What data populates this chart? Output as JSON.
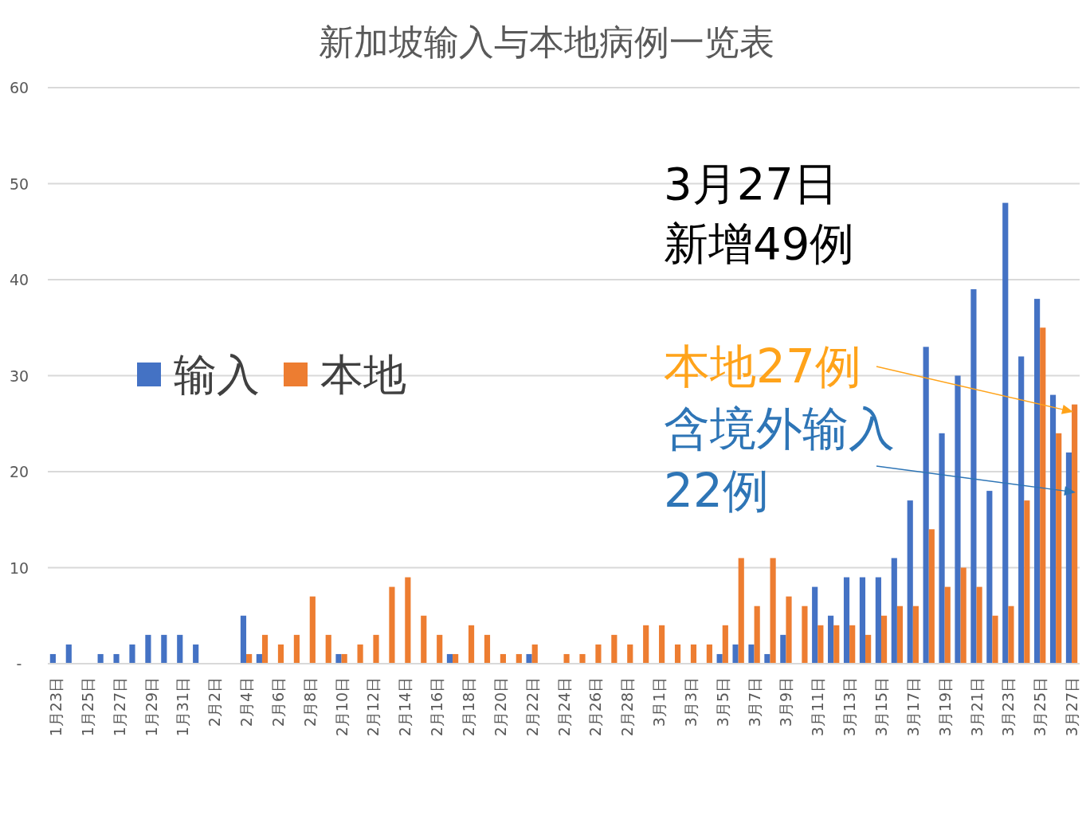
{
  "chart_data": {
    "type": "bar",
    "title": "新加坡输入与本地病例一览表",
    "categories": [
      "1月23日",
      null,
      "1月25日",
      null,
      "1月27日",
      null,
      "1月29日",
      null,
      "1月31日",
      null,
      "2月2日",
      null,
      "2月4日",
      null,
      "2月6日",
      null,
      "2月8日",
      null,
      "2月10日",
      null,
      "2月12日",
      null,
      "2月14日",
      null,
      "2月16日",
      null,
      "2月18日",
      null,
      "2月20日",
      null,
      "2月22日",
      null,
      "2月24日",
      null,
      "2月26日",
      null,
      "2月28日",
      null,
      "3月1日",
      null,
      "3月3日",
      null,
      "3月5日",
      null,
      "3月7日",
      null,
      "3月9日",
      null,
      "3月11日",
      null,
      "3月13日",
      null,
      "3月15日",
      null,
      "3月17日",
      null,
      "3月19日",
      null,
      "3月21日",
      null,
      "3月23日",
      null,
      "3月25日",
      null,
      "3月27日"
    ],
    "series": [
      {
        "name": "输入",
        "color": "#4472c4",
        "values": [
          1,
          2,
          0,
          1,
          1,
          2,
          3,
          3,
          3,
          2,
          0,
          0,
          5,
          1,
          0,
          0,
          0,
          0,
          1,
          0,
          0,
          0,
          0,
          0,
          0,
          1,
          0,
          0,
          0,
          0,
          1,
          0,
          0,
          0,
          0,
          0,
          0,
          0,
          0,
          0,
          0,
          0,
          1,
          2,
          2,
          1,
          3,
          0,
          8,
          5,
          9,
          9,
          9,
          11,
          17,
          33,
          24,
          30,
          39,
          18,
          48,
          32,
          38,
          28,
          22
        ]
      },
      {
        "name": "本地",
        "color": "#ed7d31",
        "values": [
          0,
          0,
          0,
          0,
          0,
          0,
          0,
          0,
          0,
          0,
          0,
          0,
          1,
          3,
          2,
          3,
          7,
          3,
          1,
          2,
          3,
          8,
          9,
          5,
          3,
          1,
          4,
          3,
          1,
          1,
          2,
          0,
          1,
          1,
          2,
          3,
          2,
          4,
          4,
          2,
          2,
          2,
          4,
          11,
          6,
          11,
          7,
          6,
          4,
          4,
          4,
          3,
          5,
          6,
          6,
          14,
          8,
          10,
          8,
          5,
          6,
          17,
          35,
          24,
          27
        ]
      }
    ],
    "ylim": [
      0,
      60
    ],
    "yticks": [
      {
        "value": 0,
        "label": "-"
      },
      10,
      20,
      30,
      40,
      50,
      60
    ],
    "grid": "y",
    "legend": "left",
    "annotations": [
      "3月27日",
      "新增49例",
      "本地27例",
      "含境外输入22例"
    ]
  }
}
